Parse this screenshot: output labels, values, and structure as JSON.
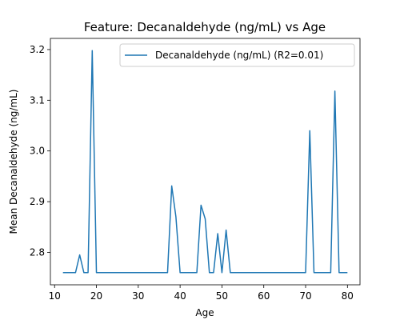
{
  "chart_data": {
    "type": "line",
    "title": "Feature: Decanaldehyde (ng/mL) vs Age",
    "xlabel": "Age",
    "ylabel": "Mean Decanaldehyde (ng/mL)",
    "xlim": [
      9,
      83
    ],
    "ylim": [
      2.736,
      3.222
    ],
    "xticks": [
      10,
      20,
      30,
      40,
      50,
      60,
      70,
      80
    ],
    "yticks": [
      2.8,
      2.9,
      3.0,
      3.1,
      3.2
    ],
    "ytick_labels": [
      "2.8",
      "2.9",
      "3.0",
      "3.1",
      "3.2"
    ],
    "grid": false,
    "legend_position": "top-right",
    "series": [
      {
        "name": "Decanaldehyde (ng/mL) (R2=0.01)",
        "color": "#1f77b4",
        "x": [
          12,
          15,
          16,
          17,
          18,
          19,
          20,
          37,
          38,
          39,
          40,
          44,
          45,
          46,
          47,
          48,
          49,
          50,
          51,
          52,
          70,
          71,
          72,
          76,
          77,
          78,
          80
        ],
        "y": [
          2.76,
          2.76,
          2.795,
          2.76,
          2.76,
          3.198,
          2.76,
          2.76,
          2.931,
          2.87,
          2.76,
          2.76,
          2.893,
          2.866,
          2.76,
          2.76,
          2.837,
          2.76,
          2.844,
          2.76,
          2.76,
          3.04,
          2.76,
          2.76,
          3.118,
          2.76,
          2.76
        ]
      }
    ]
  }
}
